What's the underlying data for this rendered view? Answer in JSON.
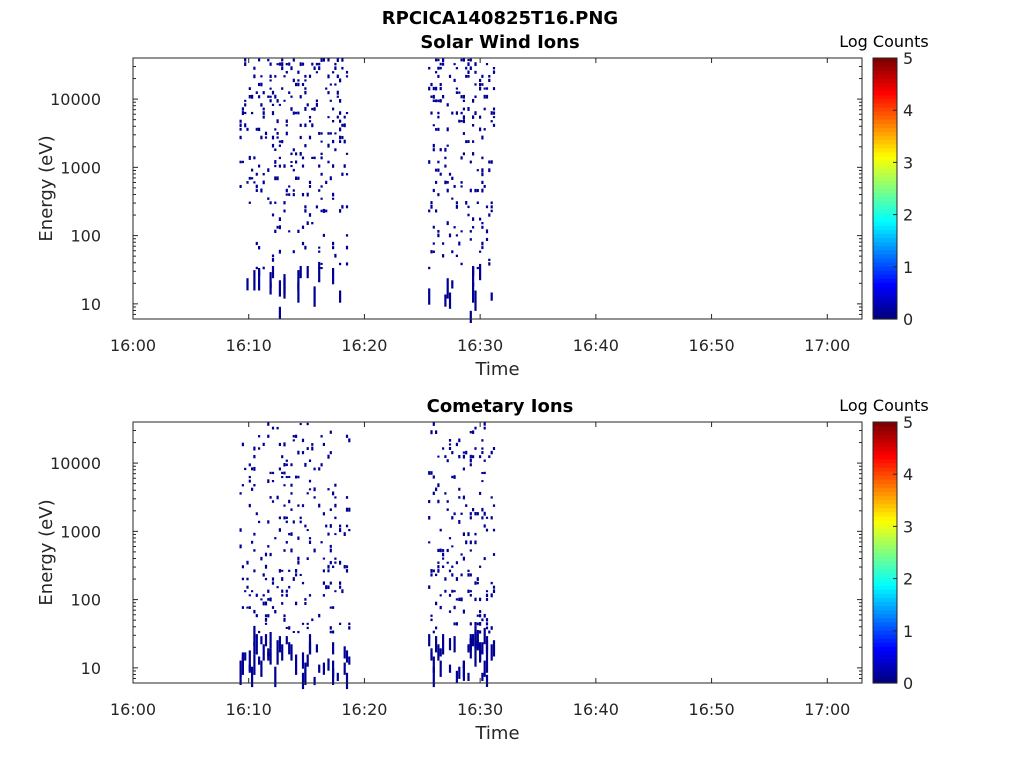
{
  "figure_title": "RPCICA140825T16.PNG",
  "chart_data": [
    {
      "type": "heatmap",
      "title": "Solar Wind Ions",
      "xlabel": "Time",
      "ylabel": "Energy (eV)",
      "x_ticks": [
        "16:00",
        "16:10",
        "16:20",
        "16:30",
        "16:40",
        "16:50",
        "17:00"
      ],
      "x_range_minutes": [
        0,
        63
      ],
      "y_scale": "log",
      "y_ticks": [
        "10",
        "100",
        "1000",
        "10000"
      ],
      "y_range": [
        6,
        40000
      ],
      "colorbar": {
        "label": "Log Counts",
        "ticks": [
          "0",
          "1",
          "2",
          "3",
          "4",
          "5"
        ],
        "range": [
          0,
          5
        ],
        "colormap": "jet"
      },
      "grid": false,
      "activity_intervals_minutes": [
        [
          9.2,
          18.4
        ],
        [
          25.5,
          31.2
        ]
      ],
      "dominant_level_log_counts": 0.1
    },
    {
      "type": "heatmap",
      "title": "Cometary Ions",
      "xlabel": "Time",
      "ylabel": "Energy (eV)",
      "x_ticks": [
        "16:00",
        "16:10",
        "16:20",
        "16:30",
        "16:40",
        "16:50",
        "17:00"
      ],
      "x_range_minutes": [
        0,
        63
      ],
      "y_scale": "log",
      "y_ticks": [
        "10",
        "100",
        "1000",
        "10000"
      ],
      "y_range": [
        6,
        40000
      ],
      "colorbar": {
        "label": "Log Counts",
        "ticks": [
          "0",
          "1",
          "2",
          "3",
          "4",
          "5"
        ],
        "range": [
          0,
          5
        ],
        "colormap": "jet"
      },
      "grid": false,
      "activity_intervals_minutes": [
        [
          9.2,
          18.6
        ],
        [
          25.5,
          31.2
        ]
      ],
      "dominant_level_log_counts": 0.1
    }
  ]
}
